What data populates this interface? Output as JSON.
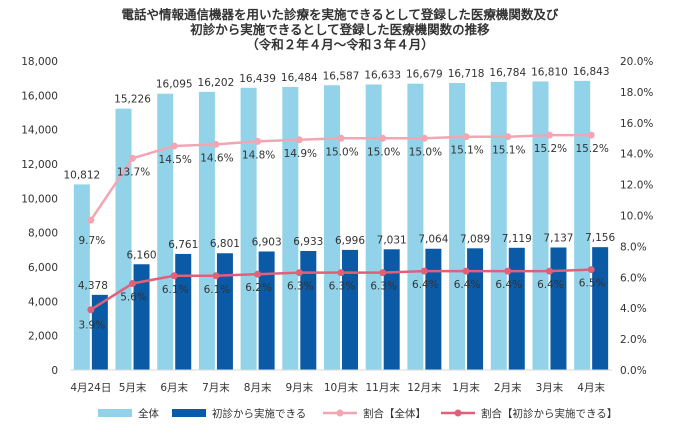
{
  "chart_data": {
    "type": "bar",
    "title": [
      "電話や情報通信機器を用いた診療を実施できるとして登録した医療機関数及び",
      "初診から実施できるとして登録した医療機関数の推移",
      "（令和２年４月～令和３年４月）"
    ],
    "categories": [
      "4月24日",
      "5月末",
      "6月末",
      "7月末",
      "8月末",
      "9月末",
      "10月末",
      "11月末",
      "12月末",
      "1月末",
      "2月末",
      "3月末",
      "4月末"
    ],
    "series": [
      {
        "name": "全体",
        "kind": "bar",
        "axis": "left",
        "values": [
          10812,
          15226,
          16095,
          16202,
          16439,
          16484,
          16587,
          16633,
          16679,
          16718,
          16784,
          16810,
          16843
        ],
        "labels": [
          "10,812",
          "15,226",
          "16,095",
          "16,202",
          "16,439",
          "16,484",
          "16,587",
          "16,633",
          "16,679",
          "16,718",
          "16,784",
          "16,810",
          "16,843"
        ]
      },
      {
        "name": "初診から実施できる",
        "kind": "bar",
        "axis": "left",
        "values": [
          4378,
          6160,
          6761,
          6801,
          6903,
          6933,
          6996,
          7031,
          7064,
          7089,
          7119,
          7137,
          7156
        ],
        "labels": [
          "4,378",
          "6,160",
          "6,761",
          "6,801",
          "6,903",
          "6,933",
          "6,996",
          "7,031",
          "7,064",
          "7,089",
          "7,119",
          "7,137",
          "7,156"
        ]
      },
      {
        "name": "割合【全体】",
        "kind": "line",
        "axis": "right",
        "values": [
          9.7,
          13.7,
          14.5,
          14.6,
          14.8,
          14.9,
          15.0,
          15.0,
          15.0,
          15.1,
          15.1,
          15.2,
          15.2
        ],
        "labels": [
          "9.7%",
          "13.7%",
          "14.5%",
          "14.6%",
          "14.8%",
          "14.9%",
          "15.0%",
          "15.0%",
          "15.0%",
          "15.1%",
          "15.1%",
          "15.2%",
          "15.2%"
        ]
      },
      {
        "name": "割合【初診から実施できる】",
        "kind": "line",
        "axis": "right",
        "values": [
          3.9,
          5.6,
          6.1,
          6.1,
          6.2,
          6.3,
          6.3,
          6.3,
          6.4,
          6.4,
          6.4,
          6.4,
          6.5
        ],
        "labels": [
          "3.9%",
          "5.6%",
          "6.1%",
          "6.1%",
          "6.2%",
          "6.3%",
          "6.3%",
          "6.3%",
          "6.4%",
          "6.4%",
          "6.4%",
          "6.4%",
          "6.5%"
        ]
      }
    ],
    "left_axis": {
      "min": 0,
      "max": 18000,
      "step": 2000,
      "tick_labels": [
        "0",
        "2,000",
        "4,000",
        "6,000",
        "8,000",
        "10,000",
        "12,000",
        "14,000",
        "16,000",
        "18,000"
      ]
    },
    "right_axis": {
      "min": 0,
      "max": 20,
      "step": 2,
      "tick_labels": [
        "0.0%",
        "2.0%",
        "4.0%",
        "6.0%",
        "8.0%",
        "10.0%",
        "12.0%",
        "14.0%",
        "16.0%",
        "18.0%",
        "20.0%"
      ]
    },
    "grid": false,
    "legend_position": "bottom",
    "colors": {
      "total_bar": "#92d3ea",
      "first_bar": "#0b5aa6",
      "ratio_total": "#f2a6b4",
      "ratio_first": "#e0607a",
      "text": "#333333"
    }
  }
}
